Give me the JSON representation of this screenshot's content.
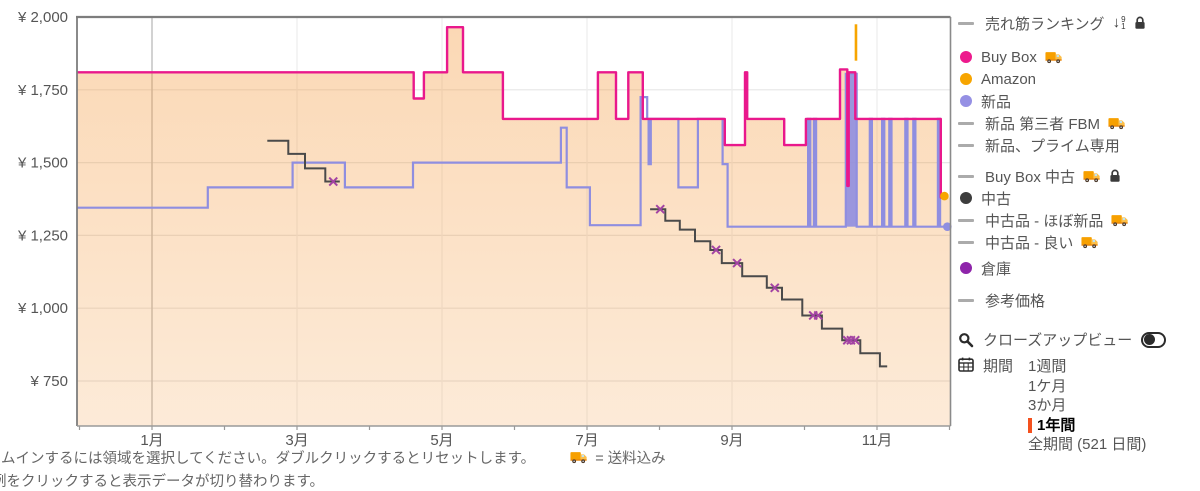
{
  "chart_data": {
    "type": "line-step",
    "title": "",
    "y_axis": {
      "unit": "yen",
      "ticks": [
        {
          "value": 2000,
          "label": "¥ 2,000"
        },
        {
          "value": 1750,
          "label": "¥ 1,750"
        },
        {
          "value": 1500,
          "label": "¥ 1,500"
        },
        {
          "value": 1250,
          "label": "¥ 1,250"
        },
        {
          "value": 1000,
          "label": "¥ 1,000"
        },
        {
          "value": 750,
          "label": "¥ 750"
        }
      ],
      "plot_range": [
        596,
        2000
      ],
      "h_gridline_values": [
        1750,
        1500,
        1250,
        1000,
        750
      ]
    },
    "x_axis": {
      "ticks": [
        {
          "month": 1,
          "label": "1月"
        },
        {
          "month": 3,
          "label": "3月"
        },
        {
          "month": 5,
          "label": "5月"
        },
        {
          "month": 7,
          "label": "7月"
        },
        {
          "month": 9,
          "label": "9月"
        },
        {
          "month": 11,
          "label": "11月"
        }
      ],
      "minor_tick_months": [
        0,
        1,
        2,
        3,
        4,
        5,
        6,
        7,
        8,
        9,
        10,
        11,
        12
      ],
      "v_grid_light_months": [
        3,
        5,
        7,
        9,
        11
      ],
      "v_grid_dark_months": [
        1
      ],
      "range_months": [
        -0.03,
        12.0
      ]
    },
    "series": [
      {
        "name": "Buy Box",
        "color": "#e9188c",
        "type": "step",
        "fill": "under",
        "end_m": 11.93,
        "points": [
          [
            -0.03,
            1810
          ],
          [
            4.61,
            1720
          ],
          [
            4.75,
            1810
          ],
          [
            5.07,
            1965
          ],
          [
            5.29,
            1810
          ],
          [
            5.84,
            1650
          ],
          [
            7.15,
            1810
          ],
          [
            7.4,
            1650
          ],
          [
            7.57,
            1810
          ],
          [
            7.77,
            1650
          ],
          [
            8.9,
            1560
          ],
          [
            9.18,
            1810
          ],
          [
            9.21,
            1650
          ],
          [
            9.72,
            1560
          ],
          [
            10.02,
            1650
          ],
          [
            10.49,
            1820
          ],
          [
            10.59,
            1420
          ],
          [
            10.61,
            1810
          ],
          [
            10.7,
            1650
          ],
          [
            11.88,
            1380
          ]
        ]
      },
      {
        "name": "新品",
        "color": "#8f8ee0",
        "type": "step",
        "end_m": 11.97,
        "points": [
          [
            -0.03,
            1345
          ],
          [
            1.77,
            1415
          ],
          [
            2.94,
            1500
          ],
          [
            3.66,
            1415
          ],
          [
            4.6,
            1500
          ],
          [
            6.64,
            1620
          ],
          [
            6.72,
            1415
          ],
          [
            7.04,
            1285
          ],
          [
            7.74,
            1725
          ],
          [
            7.83,
            1650
          ],
          [
            7.85,
            1495
          ],
          [
            7.88,
            1650
          ],
          [
            8.26,
            1415
          ],
          [
            8.53,
            1650
          ],
          [
            8.87,
            1495
          ],
          [
            8.94,
            1280
          ],
          [
            10.05,
            1650
          ],
          [
            10.08,
            1280
          ],
          [
            10.13,
            1650
          ],
          [
            10.16,
            1280
          ],
          [
            10.57,
            1805
          ],
          [
            10.72,
            1280
          ],
          [
            10.9,
            1650
          ],
          [
            10.93,
            1280
          ],
          [
            11.07,
            1650
          ],
          [
            11.1,
            1280
          ],
          [
            11.17,
            1650
          ],
          [
            11.2,
            1280
          ],
          [
            11.39,
            1650
          ],
          [
            11.42,
            1280
          ],
          [
            11.5,
            1650
          ],
          [
            11.53,
            1280
          ],
          [
            11.84,
            1650
          ],
          [
            11.87,
            1280
          ]
        ]
      },
      {
        "name": "中古",
        "color": "#4a4a4a",
        "type": "step-multi",
        "segments": [
          {
            "end_m": 3.59,
            "points": [
              [
                2.59,
                1575
              ],
              [
                2.88,
                1530
              ],
              [
                3.11,
                1480
              ],
              [
                3.39,
                1435
              ]
            ]
          },
          {
            "end_m": 11.14,
            "points": [
              [
                7.87,
                1340
              ],
              [
                8.08,
                1300
              ],
              [
                8.28,
                1270
              ],
              [
                8.49,
                1230
              ],
              [
                8.7,
                1200
              ],
              [
                8.86,
                1155
              ],
              [
                9.14,
                1110
              ],
              [
                9.48,
                1070
              ],
              [
                9.69,
                1030
              ],
              [
                9.97,
                975
              ],
              [
                10.24,
                930
              ],
              [
                10.52,
                890
              ],
              [
                10.77,
                845
              ],
              [
                11.04,
                800
              ]
            ]
          }
        ]
      },
      {
        "name": "Amazon",
        "color": "#f7a500",
        "type": "segment",
        "points": [
          [
            10.71,
            1975
          ],
          [
            10.71,
            1850
          ]
        ]
      }
    ],
    "markers": {
      "shape": "x",
      "color": "#a343a3",
      "points": [
        [
          3.5,
          1435
        ],
        [
          8.01,
          1340
        ],
        [
          8.78,
          1200
        ],
        [
          9.07,
          1155
        ],
        [
          9.59,
          1070
        ],
        [
          10.12,
          975
        ],
        [
          10.19,
          975
        ],
        [
          10.59,
          890
        ],
        [
          10.64,
          890
        ],
        [
          10.7,
          890
        ]
      ]
    },
    "end_dots": [
      {
        "series": "Amazon",
        "color": "#f7a500",
        "m": 11.93,
        "value": 1385
      },
      {
        "series": "新品",
        "color": "#8f8ee0",
        "m": 11.97,
        "value": 1280
      }
    ],
    "highlight_bar": {
      "color": "#8f8ee0",
      "m0": 10.57,
      "m1": 10.72,
      "top": 1805,
      "bottom": 1280
    },
    "fill_color_top": "rgba(244,153,60,0.38)",
    "fill_color_bottom": "rgba(244,153,60,0.20)"
  },
  "legend": {
    "items": [
      {
        "name": "sales-rank",
        "label": "売れ筋ランキング",
        "swatch": "dash",
        "icons": [
          "sort",
          "lock"
        ],
        "gap_before": 0
      },
      {
        "name": "buy-box",
        "label": "Buy Box",
        "swatch": "dot",
        "color": "#ed1a8d",
        "icons": [
          "truck"
        ],
        "gap_before": 12
      },
      {
        "name": "amazon",
        "label": "Amazon",
        "swatch": "dot",
        "color": "#f7a500",
        "icons": []
      },
      {
        "name": "new",
        "label": "新品",
        "swatch": "dot",
        "color": "#9590e4",
        "icons": []
      },
      {
        "name": "new-3rd-fbm",
        "label": "新品 第三者 FBM",
        "swatch": "dash",
        "icons": [
          "truck"
        ]
      },
      {
        "name": "new-prime",
        "label": "新品、プライム専用",
        "swatch": "dash",
        "icons": []
      },
      {
        "name": "buy-box-used",
        "label": "Buy Box 中古",
        "swatch": "dash",
        "icons": [
          "truck",
          "lock"
        ],
        "gap_before": 9
      },
      {
        "name": "used",
        "label": "中古",
        "swatch": "dot",
        "color": "#3d3d3d",
        "icons": []
      },
      {
        "name": "used-like-new",
        "label": "中古品 - ほぼ新品",
        "swatch": "dash",
        "icons": [
          "truck"
        ]
      },
      {
        "name": "used-good",
        "label": "中古品 - 良い",
        "swatch": "dash",
        "icons": [
          "truck"
        ]
      },
      {
        "name": "warehouse",
        "label": "倉庫",
        "swatch": "dot",
        "color": "#8e24aa",
        "icons": [],
        "gap_before": 4
      },
      {
        "name": "list-price",
        "label": "参考価格",
        "swatch": "dash",
        "icons": [],
        "gap_before": 10
      }
    ]
  },
  "controls": {
    "closeup_label": "クローズアップビュー",
    "period_label": "期間",
    "period_options": [
      {
        "name": "1week",
        "label": "1週間",
        "active": false
      },
      {
        "name": "1month",
        "label": "1ケ月",
        "active": false
      },
      {
        "name": "3months",
        "label": "3か月",
        "active": false
      },
      {
        "name": "1year",
        "label": "1年間",
        "active": true
      },
      {
        "name": "all",
        "label": "全期間 (521 日間)",
        "active": false
      }
    ]
  },
  "notes": {
    "line1": "ムインするには領域を選択してください。ダブルクリックするとリセットします。",
    "shipping": "= 送料込み",
    "line2": "例をクリックすると表示データが切り替わります。"
  }
}
